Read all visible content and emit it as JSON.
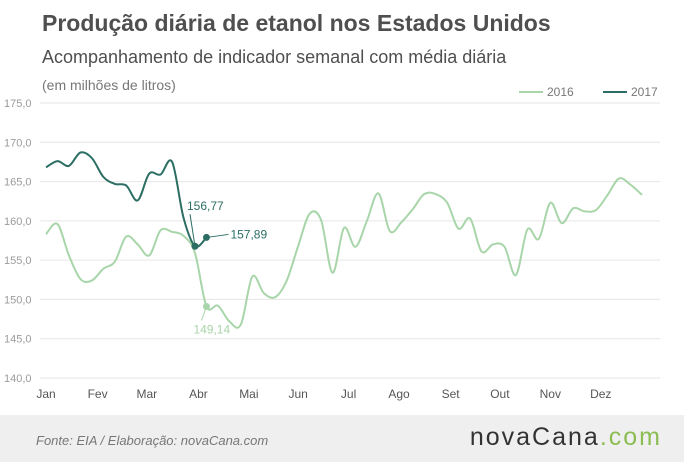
{
  "header": {
    "title": "Produção diária de etanol nos Estados Unidos",
    "subtitle": "Acompanhamento de indicador semanal com média diária",
    "unit": "(em milhões de litros)"
  },
  "footer": {
    "source": "Fonte:  EIA  / Elaboração:  novaCana.com",
    "logo_main": "novaCana",
    "logo_dot": ".",
    "logo_suffix": "com"
  },
  "colors": {
    "series_2016": "#a8d5a9",
    "series_2017": "#2c6e63",
    "grid": "#e6e6e6",
    "axis_text": "#9b9b9b"
  },
  "chart_data": {
    "type": "line",
    "x_unit": "week_of_year",
    "ylim": [
      140,
      175
    ],
    "yticks": [
      "140,0",
      "145,0",
      "150,0",
      "155,0",
      "160,0",
      "165,0",
      "170,0",
      "175,0"
    ],
    "ytick_values": [
      140,
      145,
      150,
      155,
      160,
      165,
      170,
      175
    ],
    "x_categories": [
      "Jan",
      "Fev",
      "Mar",
      "Abr",
      "Mai",
      "Jun",
      "Jul",
      "Ago",
      "Set",
      "Out",
      "Nov",
      "Dez"
    ],
    "x_category_weeks": [
      1,
      5.5,
      9.8,
      14.3,
      18.7,
      23,
      27.4,
      31.8,
      36.3,
      40.6,
      45,
      49.4
    ],
    "grid": "horizontal",
    "legend_position": "top-right",
    "series": [
      {
        "name": "2016",
        "points": [
          [
            1,
            158.3
          ],
          [
            2,
            159.6
          ],
          [
            3,
            155.6
          ],
          [
            4,
            152.6
          ],
          [
            5,
            152.4
          ],
          [
            6,
            153.9
          ],
          [
            7,
            154.8
          ],
          [
            8,
            158.0
          ],
          [
            9,
            157.0
          ],
          [
            10,
            155.6
          ],
          [
            11,
            158.8
          ],
          [
            12,
            158.6
          ],
          [
            13,
            158.1
          ],
          [
            14,
            155.9
          ],
          [
            15,
            149.1
          ],
          [
            16,
            149.2
          ],
          [
            17,
            147.2
          ],
          [
            18,
            146.8
          ],
          [
            19,
            152.9
          ],
          [
            20,
            150.8
          ],
          [
            21,
            150.3
          ],
          [
            22,
            152.4
          ],
          [
            23,
            156.8
          ],
          [
            24,
            160.9
          ],
          [
            25,
            160.1
          ],
          [
            26,
            153.4
          ],
          [
            27,
            159.1
          ],
          [
            28,
            156.7
          ],
          [
            29,
            160.0
          ],
          [
            30,
            163.5
          ],
          [
            31,
            158.7
          ],
          [
            32,
            159.8
          ],
          [
            33,
            161.5
          ],
          [
            34,
            163.4
          ],
          [
            35,
            163.4
          ],
          [
            36,
            162.3
          ],
          [
            37,
            159.0
          ],
          [
            38,
            160.3
          ],
          [
            39,
            156.1
          ],
          [
            40,
            157.0
          ],
          [
            41,
            156.7
          ],
          [
            42,
            153.1
          ],
          [
            43,
            158.9
          ],
          [
            44,
            157.7
          ],
          [
            45,
            162.3
          ],
          [
            46,
            159.7
          ],
          [
            47,
            161.6
          ],
          [
            48,
            161.2
          ],
          [
            49,
            161.4
          ],
          [
            50,
            163.3
          ],
          [
            51,
            165.4
          ],
          [
            52,
            164.6
          ],
          [
            53,
            163.3
          ]
        ]
      },
      {
        "name": "2017",
        "points": [
          [
            1,
            166.8
          ],
          [
            2,
            167.6
          ],
          [
            3,
            167.0
          ],
          [
            4,
            168.7
          ],
          [
            5,
            168.0
          ],
          [
            6,
            165.6
          ],
          [
            7,
            164.7
          ],
          [
            8,
            164.5
          ],
          [
            9,
            162.6
          ],
          [
            10,
            166.0
          ],
          [
            11,
            165.9
          ],
          [
            12,
            167.5
          ],
          [
            13,
            160.4
          ],
          [
            14,
            156.77
          ],
          [
            15,
            157.89
          ]
        ]
      }
    ],
    "annotations": [
      {
        "series": "2017",
        "x": 14,
        "y": 156.77,
        "label": "156,77"
      },
      {
        "series": "2017",
        "x": 15,
        "y": 157.89,
        "label": "157,89"
      },
      {
        "series": "2016",
        "x": 15,
        "y": 149.1,
        "label": "149,14"
      }
    ]
  }
}
